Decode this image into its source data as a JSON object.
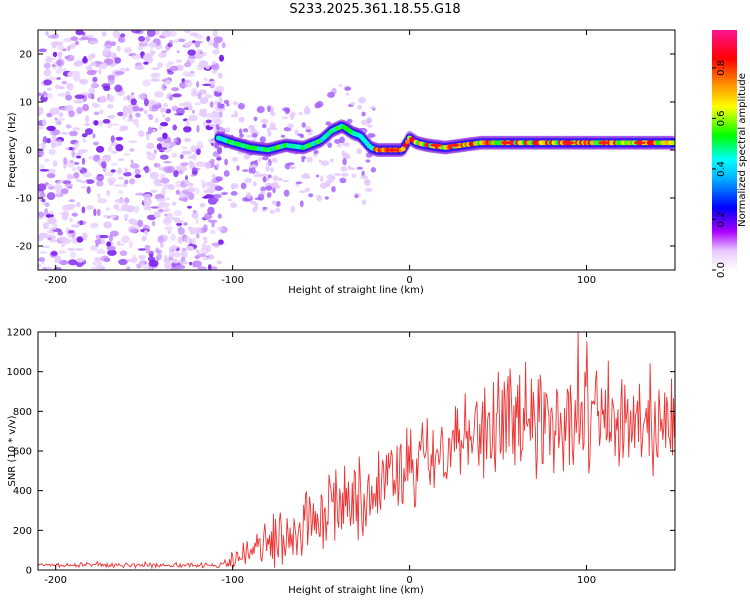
{
  "title": "S233.2025.361.18.55.G18",
  "chart_data": [
    {
      "type": "heatmap",
      "title": "S233.2025.361.18.55.G18",
      "xlabel": "Height of straight line (km)",
      "ylabel": "Frequency (Hz)",
      "xlim": [
        -210,
        150
      ],
      "ylim": [
        -25,
        25
      ],
      "xticks": [
        -200,
        -100,
        0,
        100
      ],
      "yticks": [
        -20,
        -10,
        0,
        10,
        20
      ],
      "grid": false,
      "colorbar": {
        "label": "Normalized spectral amplitude",
        "range": [
          0,
          0.95
        ],
        "ticks": [
          0.0,
          0.2,
          0.4,
          0.6,
          0.8
        ],
        "colors": [
          "#ffffff",
          "#cc00ff",
          "#0000ff",
          "#00ffff",
          "#00ff00",
          "#ffff00",
          "#ff0000",
          "#ff1493"
        ]
      },
      "ridge": {
        "x": [
          -108,
          -100,
          -90,
          -80,
          -70,
          -60,
          -50,
          -44,
          -38,
          -32,
          -28,
          -22,
          -18,
          -14,
          -10,
          -4,
          0,
          4,
          10,
          20,
          40,
          60,
          80,
          100,
          120,
          150
        ],
        "y": [
          2.5,
          1.5,
          0.5,
          0.0,
          1.0,
          0.5,
          2.0,
          4.0,
          5.0,
          3.5,
          3.0,
          0.5,
          0.0,
          0.0,
          0.0,
          0.0,
          2.5,
          1.5,
          1.0,
          0.5,
          1.5,
          1.5,
          1.5,
          1.5,
          1.5,
          1.5
        ]
      },
      "noise_region_x": [
        -210,
        -105
      ]
    },
    {
      "type": "line",
      "title": "",
      "xlabel": "Height of straight line (km)",
      "ylabel": "SNR (10 * v/v)",
      "xlim": [
        -210,
        150
      ],
      "ylim": [
        0,
        1200
      ],
      "xticks": [
        -200,
        -100,
        0,
        100
      ],
      "yticks": [
        0,
        200,
        400,
        600,
        800,
        1000,
        1200
      ],
      "grid": false,
      "series": [
        {
          "name": "SNR",
          "color": "#ee3333",
          "envelope_x": [
            -210,
            -105,
            -100,
            -90,
            -80,
            -70,
            -60,
            -50,
            -40,
            -30,
            -20,
            -10,
            0,
            10,
            20,
            30,
            40,
            50,
            60,
            70,
            80,
            90,
            100,
            110,
            120,
            130,
            140,
            150
          ],
          "envelope_mean": [
            25,
            25,
            50,
            90,
            130,
            180,
            220,
            260,
            300,
            360,
            420,
            470,
            500,
            540,
            620,
            700,
            720,
            740,
            760,
            760,
            760,
            760,
            760,
            740,
            740,
            740,
            740,
            740
          ],
          "envelope_spread": [
            10,
            12,
            50,
            80,
            110,
            130,
            150,
            160,
            170,
            180,
            190,
            200,
            200,
            210,
            230,
            250,
            260,
            260,
            260,
            250,
            250,
            250,
            250,
            230,
            220,
            220,
            220,
            220
          ]
        }
      ]
    }
  ]
}
